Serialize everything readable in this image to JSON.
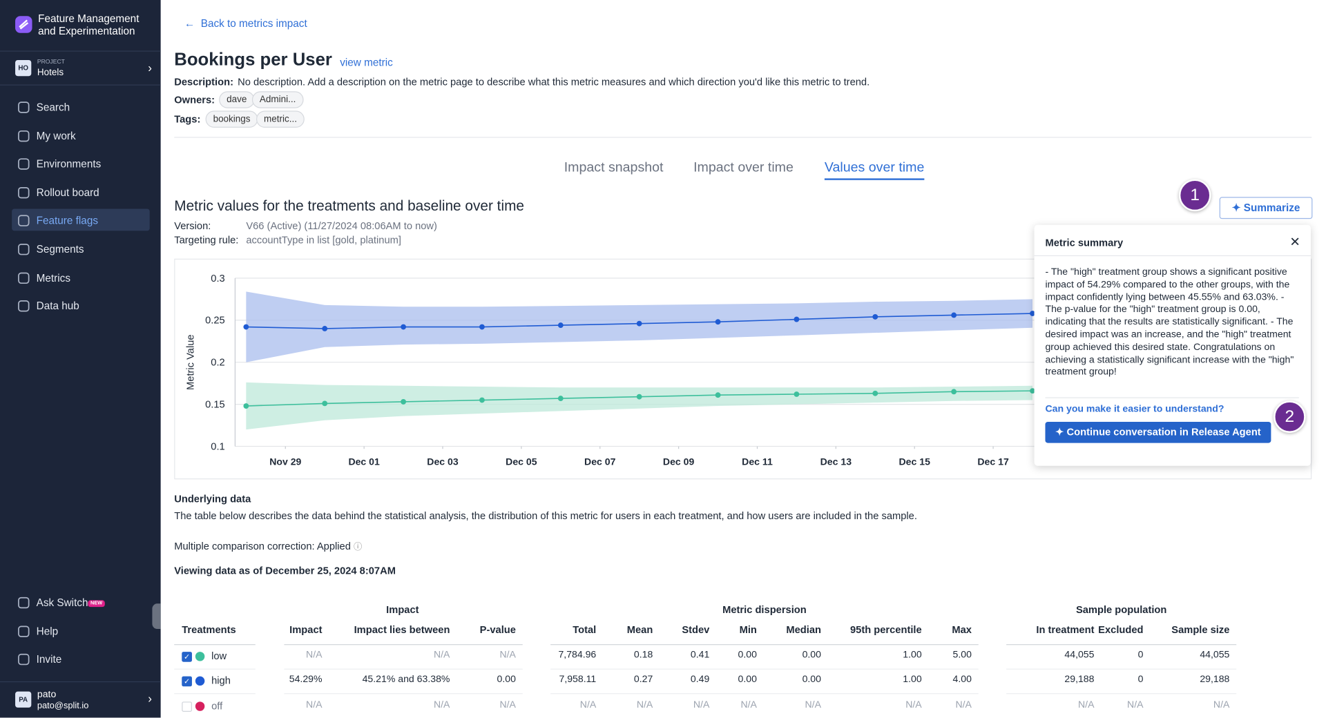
{
  "sidebar": {
    "app_name": "Feature Management and Experimentation",
    "project": {
      "badge": "HO",
      "label": "PROJECT",
      "name": "Hotels"
    },
    "nav": [
      "Search",
      "My work",
      "Environments",
      "Rollout board",
      "Feature flags",
      "Segments",
      "Metrics",
      "Data hub"
    ],
    "bottom_nav": [
      "Ask Switch",
      "Help",
      "Invite"
    ],
    "new_badge": "NEW",
    "user": {
      "badge": "PA",
      "name": "pato",
      "email": "pato@split.io"
    }
  },
  "header": {
    "back_link": "Back to metrics impact",
    "title": "Bookings per User",
    "view_link": "view metric",
    "description_label": "Description:",
    "description": "No description. Add a description on the metric page to describe what this metric measures and which direction you'd like this metric to trend.",
    "owners_label": "Owners:",
    "owners": [
      "dave",
      "Admini..."
    ],
    "tags_label": "Tags:",
    "tags": [
      "bookings",
      "metric..."
    ]
  },
  "tabs": [
    "Impact snapshot",
    "Impact over time",
    "Values over time"
  ],
  "section": {
    "title": "Metric values for the treatments and baseline over time",
    "version_label": "Version:",
    "version": "V66 (Active) (11/27/2024 08:06AM to now)",
    "targeting_label": "Targeting rule:",
    "targeting": "accountType in list [gold, platinum]",
    "summarize_button": "Summarize"
  },
  "markers": [
    "1",
    "2"
  ],
  "chart_data": {
    "type": "line",
    "y_label": "Metric Value",
    "x": [
      0,
      2,
      4,
      6,
      8,
      10,
      12,
      14,
      16,
      18,
      20
    ],
    "xlim": [
      -0.28,
      26.97
    ],
    "xticks": [
      {
        "value": 1,
        "label": "Nov 29"
      },
      {
        "value": 3,
        "label": "Dec 01"
      },
      {
        "value": 5,
        "label": "Dec 03"
      },
      {
        "value": 7,
        "label": "Dec 05"
      },
      {
        "value": 9,
        "label": "Dec 07"
      },
      {
        "value": 11,
        "label": "Dec 09"
      },
      {
        "value": 13,
        "label": "Dec 11"
      },
      {
        "value": 15,
        "label": "Dec 13"
      },
      {
        "value": 17,
        "label": "Dec 15"
      },
      {
        "value": 19,
        "label": "Dec 17"
      }
    ],
    "ylim": [
      0.1,
      0.3
    ],
    "yticks": [
      0.1,
      0.15,
      0.2,
      0.25,
      0.3
    ],
    "grid": true,
    "series": [
      {
        "color": "#1f5bd3",
        "band_color": "#a9bdee",
        "values": [
          0.242,
          0.24,
          0.242,
          0.242,
          0.244,
          0.246,
          0.248,
          0.251,
          0.254,
          0.256,
          0.258
        ],
        "lower": [
          0.2,
          0.218,
          0.221,
          0.222,
          0.224,
          0.226,
          0.229,
          0.232,
          0.235,
          0.238,
          0.241
        ],
        "upper": [
          0.284,
          0.268,
          0.266,
          0.266,
          0.267,
          0.268,
          0.269,
          0.27,
          0.272,
          0.273,
          0.275
        ]
      },
      {
        "color": "#3dbf9c",
        "band_color": "#bde8d9",
        "values": [
          0.148,
          0.151,
          0.153,
          0.155,
          0.157,
          0.159,
          0.161,
          0.162,
          0.163,
          0.165,
          0.166
        ],
        "lower": [
          0.12,
          0.131,
          0.136,
          0.139,
          0.142,
          0.145,
          0.148,
          0.15,
          0.152,
          0.154,
          0.155
        ],
        "upper": [
          0.176,
          0.173,
          0.172,
          0.171,
          0.17,
          0.17,
          0.17,
          0.17,
          0.17,
          0.171,
          0.172
        ]
      }
    ]
  },
  "summary": {
    "title": "Metric summary",
    "text": "- The \"high\" treatment group shows a significant positive impact of 54.29% compared to the other groups, with the impact confidently lying between 45.55% and 63.03%. - The p-value for the \"high\" treatment group is 0.00, indicating that the results are statistically significant. - The desired impact was an increase, and the \"high\" treatment group achieved this desired state. Congratulations on achieving a statistically significant increase with the \"high\" treatment group!",
    "link": "Can you make it easier to understand?",
    "button": "Continue conversation in Release Agent"
  },
  "underlying": {
    "title": "Underlying data",
    "description": "The table below describes the data behind the statistical analysis, the distribution of this metric for users in each treatment, and how users are included in the sample.",
    "correction": "Multiple comparison correction: Applied",
    "viewing": "Viewing data as of December 25, 2024 8:07AM"
  },
  "table": {
    "groups": [
      "Impact",
      "Metric dispersion",
      "Sample population"
    ],
    "headers": [
      "Treatments",
      "Impact",
      "Impact lies between",
      "P-value",
      "Total",
      "Mean",
      "Stdev",
      "Min",
      "Median",
      "95th percentile",
      "Max",
      "In treatment",
      "Excluded",
      "Sample size"
    ],
    "rows": [
      {
        "name": "low",
        "color": "#3dbf9c",
        "checked": true,
        "cells": [
          "N/A",
          "N/A",
          "N/A",
          "7,784.96",
          "0.18",
          "0.41",
          "0.00",
          "0.00",
          "1.00",
          "5.00",
          "44,055",
          "0",
          "44,055"
        ]
      },
      {
        "name": "high",
        "color": "#1f5bd3",
        "checked": true,
        "cells": [
          "54.29%",
          "45.21% and 63.38%",
          "0.00",
          "7,958.11",
          "0.27",
          "0.49",
          "0.00",
          "0.00",
          "1.00",
          "4.00",
          "29,188",
          "0",
          "29,188"
        ]
      },
      {
        "name": "off",
        "color": "#d6215e",
        "checked": false,
        "cells": [
          "N/A",
          "N/A",
          "N/A",
          "N/A",
          "N/A",
          "N/A",
          "N/A",
          "N/A",
          "N/A",
          "N/A",
          "N/A",
          "N/A",
          "N/A"
        ]
      }
    ]
  }
}
